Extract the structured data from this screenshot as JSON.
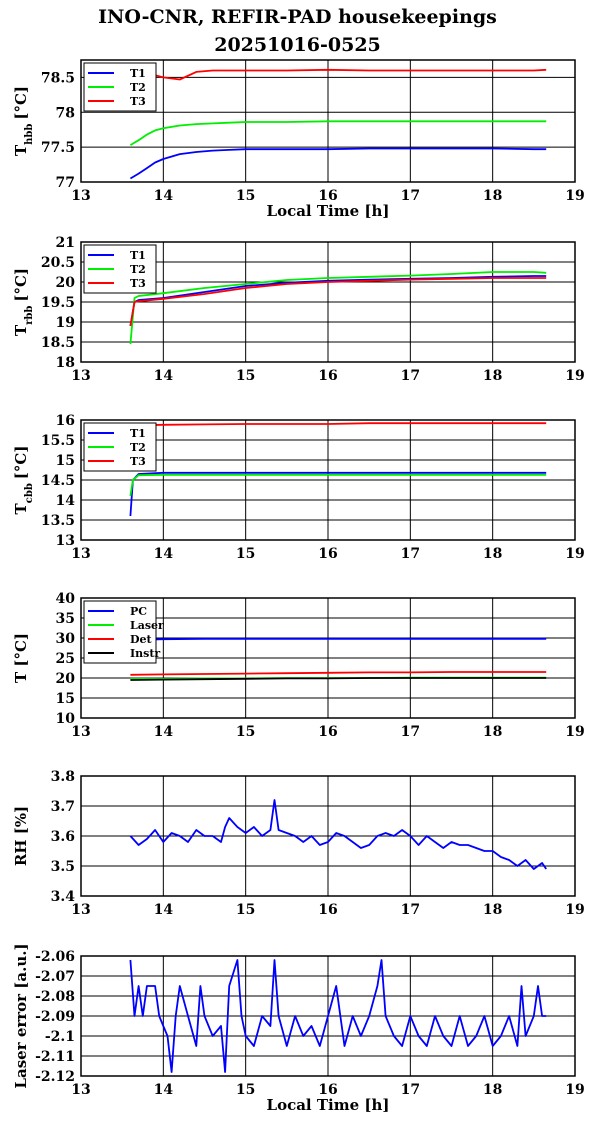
{
  "page": {
    "title_line1": "INO-CNR, REFIR-PAD housekeepings",
    "title_line2": "20251016-0525"
  },
  "colors": {
    "blue": "#0000ff",
    "green": "#00ee00",
    "red": "#ff0000",
    "black": "#000000"
  },
  "chart_data": [
    {
      "type": "line",
      "ylabel_main": "T",
      "ylabel_sub": "hbb",
      "ylabel_unit": "[°C]",
      "xlabel": "Local Time [h]",
      "xlim": [
        13,
        19
      ],
      "ylim": [
        77,
        78.75
      ],
      "xticks": [
        "13",
        "14",
        "15",
        "16",
        "17",
        "18",
        "19"
      ],
      "yticks": [
        77,
        77.5,
        78,
        78.5
      ],
      "ytick_labels": [
        "77",
        "77.5",
        "78",
        "78.5"
      ],
      "grid": "horizontal",
      "legend": "top-left",
      "x": [
        13.6,
        13.7,
        13.8,
        13.9,
        14.0,
        14.2,
        14.4,
        14.6,
        14.8,
        15.0,
        15.5,
        16.0,
        16.5,
        17.0,
        17.5,
        18.0,
        18.5,
        18.65
      ],
      "series": [
        {
          "name": "T1",
          "color": "#0000ff",
          "values": [
            77.05,
            77.12,
            77.2,
            77.28,
            77.33,
            77.4,
            77.43,
            77.45,
            77.46,
            77.47,
            77.47,
            77.47,
            77.48,
            77.48,
            77.48,
            77.48,
            77.47,
            77.47
          ]
        },
        {
          "name": "T2",
          "color": "#00ee00",
          "values": [
            77.53,
            77.6,
            77.68,
            77.74,
            77.77,
            77.81,
            77.83,
            77.84,
            77.85,
            77.86,
            77.86,
            77.87,
            77.87,
            77.87,
            77.87,
            77.87,
            77.87,
            77.87
          ]
        },
        {
          "name": "T3",
          "color": "#ff0000",
          "values": [
            78.55,
            78.55,
            78.55,
            78.53,
            78.5,
            78.47,
            78.58,
            78.6,
            78.6,
            78.6,
            78.6,
            78.61,
            78.6,
            78.6,
            78.6,
            78.6,
            78.6,
            78.61
          ]
        }
      ]
    },
    {
      "type": "line",
      "ylabel_main": "T",
      "ylabel_sub": "rbb",
      "ylabel_unit": "[°C]",
      "xlabel": "",
      "xlim": [
        13,
        19
      ],
      "ylim": [
        18,
        21
      ],
      "xticks": [
        "13",
        "14",
        "15",
        "16",
        "17",
        "18",
        "19"
      ],
      "yticks": [
        18,
        18.5,
        19,
        19.5,
        20,
        20.5,
        21
      ],
      "ytick_labels": [
        "18",
        "18.5",
        "19",
        "19.5",
        "20",
        "20.5",
        "21"
      ],
      "grid": "horizontal",
      "legend": "top-left",
      "x": [
        13.6,
        13.65,
        13.7,
        14.0,
        14.5,
        15.0,
        15.5,
        16.0,
        16.5,
        17.0,
        17.5,
        18.0,
        18.5,
        18.65
      ],
      "series": [
        {
          "name": "T1",
          "color": "#0000ff",
          "values": [
            18.9,
            19.5,
            19.55,
            19.6,
            19.75,
            19.9,
            19.98,
            20.03,
            20.06,
            20.08,
            20.1,
            20.13,
            20.15,
            20.15
          ]
        },
        {
          "name": "T2",
          "color": "#00ee00",
          "values": [
            18.45,
            19.6,
            19.65,
            19.72,
            19.85,
            19.95,
            20.05,
            20.1,
            20.13,
            20.16,
            20.2,
            20.25,
            20.25,
            20.23
          ]
        },
        {
          "name": "T3",
          "color": "#ff0000",
          "values": [
            18.9,
            19.5,
            19.52,
            19.58,
            19.7,
            19.85,
            19.95,
            20.0,
            20.03,
            20.06,
            20.08,
            20.1,
            20.1,
            20.1
          ]
        }
      ]
    },
    {
      "type": "line",
      "ylabel_main": "T",
      "ylabel_sub": "cbb",
      "ylabel_unit": "[°C]",
      "xlabel": "",
      "xlim": [
        13,
        19
      ],
      "ylim": [
        13,
        16
      ],
      "xticks": [
        "13",
        "14",
        "15",
        "16",
        "17",
        "18",
        "19"
      ],
      "yticks": [
        13,
        13.5,
        14,
        14.5,
        15,
        15.5,
        16
      ],
      "ytick_labels": [
        "13",
        "13.5",
        "14",
        "14.5",
        "15",
        "15.5",
        "16"
      ],
      "grid": "horizontal",
      "legend": "top-left",
      "x": [
        13.6,
        13.63,
        13.7,
        14.0,
        14.5,
        15.0,
        15.5,
        16.0,
        16.5,
        17.0,
        17.5,
        18.0,
        18.5,
        18.65
      ],
      "series": [
        {
          "name": "T1",
          "color": "#0000ff",
          "values": [
            13.6,
            14.5,
            14.65,
            14.68,
            14.68,
            14.68,
            14.68,
            14.68,
            14.68,
            14.68,
            14.68,
            14.68,
            14.68,
            14.68
          ]
        },
        {
          "name": "T2",
          "color": "#00ee00",
          "values": [
            14.1,
            14.5,
            14.62,
            14.63,
            14.63,
            14.63,
            14.63,
            14.63,
            14.63,
            14.63,
            14.63,
            14.63,
            14.63,
            14.63
          ]
        },
        {
          "name": "T3",
          "color": "#ff0000",
          "values": [
            15.85,
            15.85,
            15.87,
            15.88,
            15.89,
            15.9,
            15.9,
            15.9,
            15.92,
            15.92,
            15.92,
            15.92,
            15.92,
            15.92
          ]
        }
      ]
    },
    {
      "type": "line",
      "ylabel_main": "T [°C]",
      "ylabel_sub": "",
      "ylabel_unit": "",
      "xlabel": "",
      "xlim": [
        13,
        19
      ],
      "ylim": [
        10,
        40
      ],
      "xticks": [
        "13",
        "14",
        "15",
        "16",
        "17",
        "18",
        "19"
      ],
      "yticks": [
        10,
        15,
        20,
        25,
        30,
        35,
        40
      ],
      "ytick_labels": [
        "10",
        "15",
        "20",
        "25",
        "30",
        "35",
        "40"
      ],
      "grid": "horizontal",
      "legend": "top-left",
      "x": [
        13.6,
        14.0,
        14.5,
        15.0,
        15.5,
        16.0,
        16.5,
        17.0,
        17.5,
        18.0,
        18.5,
        18.65
      ],
      "series": [
        {
          "name": "PC",
          "color": "#0000ff",
          "values": [
            29.5,
            29.7,
            29.8,
            29.8,
            29.8,
            29.8,
            29.8,
            29.8,
            29.8,
            29.8,
            29.8,
            29.8
          ]
        },
        {
          "name": "Laser",
          "color": "#00ee00",
          "values": [
            19.8,
            19.8,
            19.9,
            19.9,
            20.0,
            20.0,
            20.0,
            20.1,
            20.1,
            20.1,
            20.1,
            20.1
          ]
        },
        {
          "name": "Det",
          "color": "#ff0000",
          "values": [
            20.8,
            20.9,
            21.0,
            21.1,
            21.2,
            21.3,
            21.4,
            21.4,
            21.5,
            21.5,
            21.5,
            21.5
          ]
        },
        {
          "name": "Instr",
          "color": "#000000",
          "values": [
            19.5,
            19.6,
            19.7,
            19.8,
            19.9,
            19.9,
            20.0,
            20.0,
            20.0,
            20.0,
            20.0,
            20.0
          ]
        }
      ]
    },
    {
      "type": "line",
      "ylabel_main": "RH [%]",
      "ylabel_sub": "",
      "ylabel_unit": "",
      "xlabel": "",
      "xlim": [
        13,
        19
      ],
      "ylim": [
        3.4,
        3.8
      ],
      "xticks": [
        "13",
        "14",
        "15",
        "16",
        "17",
        "18",
        "19"
      ],
      "yticks": [
        3.4,
        3.5,
        3.6,
        3.7,
        3.8
      ],
      "ytick_labels": [
        "3.4",
        "3.5",
        "3.6",
        "3.7",
        "3.8"
      ],
      "grid": "horizontal",
      "legend": "none",
      "x": [
        13.6,
        13.7,
        13.8,
        13.9,
        14.0,
        14.1,
        14.2,
        14.3,
        14.4,
        14.5,
        14.6,
        14.7,
        14.75,
        14.8,
        14.9,
        15.0,
        15.1,
        15.2,
        15.3,
        15.35,
        15.4,
        15.5,
        15.6,
        15.7,
        15.8,
        15.9,
        16.0,
        16.1,
        16.2,
        16.3,
        16.4,
        16.5,
        16.6,
        16.7,
        16.8,
        16.9,
        17.0,
        17.1,
        17.2,
        17.3,
        17.4,
        17.5,
        17.6,
        17.7,
        17.8,
        17.9,
        18.0,
        18.1,
        18.2,
        18.3,
        18.4,
        18.5,
        18.6,
        18.65
      ],
      "series": [
        {
          "name": "",
          "color": "#0000ff",
          "values": [
            3.6,
            3.57,
            3.59,
            3.62,
            3.58,
            3.61,
            3.6,
            3.58,
            3.62,
            3.6,
            3.6,
            3.58,
            3.63,
            3.66,
            3.63,
            3.61,
            3.63,
            3.6,
            3.62,
            3.72,
            3.62,
            3.61,
            3.6,
            3.58,
            3.6,
            3.57,
            3.58,
            3.61,
            3.6,
            3.58,
            3.56,
            3.57,
            3.6,
            3.61,
            3.6,
            3.62,
            3.6,
            3.57,
            3.6,
            3.58,
            3.56,
            3.58,
            3.57,
            3.57,
            3.56,
            3.55,
            3.55,
            3.53,
            3.52,
            3.5,
            3.52,
            3.49,
            3.51,
            3.49
          ]
        }
      ]
    },
    {
      "type": "line",
      "ylabel_main": "Laser error [a.u.]",
      "ylabel_sub": "",
      "ylabel_unit": "",
      "xlabel": "Local Time [h]",
      "xlim": [
        13,
        19
      ],
      "ylim": [
        -2.12,
        -2.06
      ],
      "xticks": [
        "13",
        "14",
        "15",
        "16",
        "17",
        "18",
        "19"
      ],
      "yticks": [
        -2.12,
        -2.11,
        -2.1,
        -2.09,
        -2.08,
        -2.07,
        -2.06
      ],
      "ytick_labels": [
        "-2.12",
        "-2.11",
        "-2.1",
        "-2.09",
        "-2.08",
        "-2.07",
        "-2.06"
      ],
      "grid": "horizontal",
      "legend": "none",
      "x": [
        13.6,
        13.65,
        13.7,
        13.75,
        13.8,
        13.9,
        13.95,
        14.0,
        14.05,
        14.1,
        14.15,
        14.2,
        14.3,
        14.4,
        14.45,
        14.5,
        14.6,
        14.7,
        14.75,
        14.8,
        14.9,
        14.95,
        15.0,
        15.1,
        15.2,
        15.3,
        15.35,
        15.4,
        15.5,
        15.6,
        15.7,
        15.8,
        15.9,
        16.0,
        16.1,
        16.2,
        16.3,
        16.4,
        16.5,
        16.6,
        16.65,
        16.7,
        16.8,
        16.9,
        17.0,
        17.1,
        17.2,
        17.3,
        17.4,
        17.5,
        17.6,
        17.7,
        17.8,
        17.9,
        18.0,
        18.1,
        18.2,
        18.3,
        18.35,
        18.4,
        18.5,
        18.55,
        18.6,
        18.65
      ],
      "series": [
        {
          "name": "",
          "color": "#0000ff",
          "values": [
            -2.062,
            -2.09,
            -2.075,
            -2.09,
            -2.075,
            -2.075,
            -2.09,
            -2.095,
            -2.1,
            -2.118,
            -2.09,
            -2.075,
            -2.09,
            -2.105,
            -2.075,
            -2.09,
            -2.1,
            -2.095,
            -2.118,
            -2.075,
            -2.062,
            -2.09,
            -2.1,
            -2.105,
            -2.09,
            -2.095,
            -2.062,
            -2.09,
            -2.105,
            -2.09,
            -2.1,
            -2.095,
            -2.105,
            -2.09,
            -2.075,
            -2.105,
            -2.09,
            -2.1,
            -2.09,
            -2.075,
            -2.062,
            -2.09,
            -2.1,
            -2.105,
            -2.09,
            -2.1,
            -2.105,
            -2.09,
            -2.1,
            -2.105,
            -2.09,
            -2.105,
            -2.1,
            -2.09,
            -2.105,
            -2.1,
            -2.09,
            -2.105,
            -2.075,
            -2.1,
            -2.09,
            -2.075,
            -2.09,
            -2.09
          ]
        }
      ]
    }
  ]
}
